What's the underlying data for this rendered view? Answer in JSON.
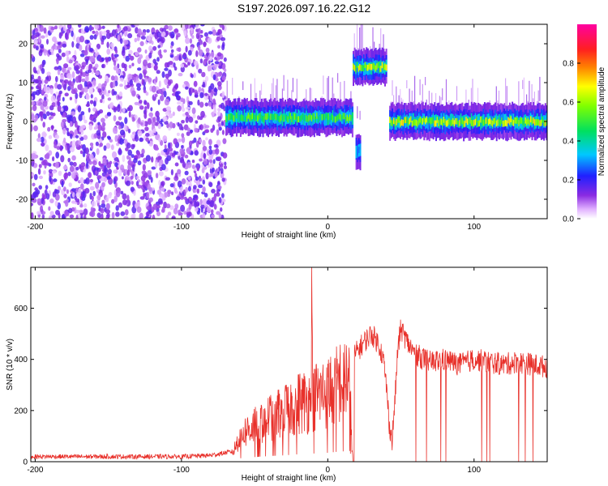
{
  "title": "S197.2026.097.16.22.G12",
  "chart_data": [
    {
      "type": "heatmap",
      "xlabel": "Height of straight line (km)",
      "ylabel": "Frequency (Hz)",
      "xlim": [
        -203,
        150
      ],
      "ylim": [
        -25,
        25
      ],
      "xticks": [
        -200,
        -100,
        0,
        100
      ],
      "yticks": [
        -20,
        -10,
        0,
        10,
        20
      ],
      "colorbar": {
        "label": "Normalized spectral amplitude",
        "range": [
          0,
          1
        ],
        "ticks": [
          0.0,
          0.2,
          0.4,
          0.6,
          0.8
        ],
        "colormap": "rainbow"
      },
      "features": [
        {
          "name": "broadband noise",
          "x_range": [
            -203,
            -70
          ],
          "amplitude": 0.15
        },
        {
          "name": "ridge",
          "x_range": [
            -70,
            17
          ],
          "freq_hz": 1,
          "amplitude": 0.5
        },
        {
          "name": "high-frequency tone",
          "x_range": [
            17,
            40
          ],
          "freq_hz": 14,
          "amplitude": 0.6
        },
        {
          "name": "blob",
          "x_range": [
            19,
            22
          ],
          "freq_hz": -7.5,
          "amplitude": 0.3
        },
        {
          "name": "ridge",
          "x_range": [
            42,
            150
          ],
          "freq_hz": 0,
          "amplitude": 0.6
        }
      ]
    },
    {
      "type": "line",
      "xlabel": "Height of straight line (km)",
      "ylabel": "SNR (10 * v/v)",
      "xlim": [
        -203,
        150
      ],
      "ylim": [
        0,
        760
      ],
      "xticks": [
        -200,
        -100,
        0,
        100
      ],
      "yticks": [
        0,
        200,
        400,
        600
      ],
      "color": "#e8302a",
      "series": [
        {
          "name": "SNR",
          "x": [
            -203,
            -150,
            -100,
            -80,
            -65,
            -60,
            -50,
            -40,
            -30,
            -20,
            -12,
            -11,
            -10,
            -5,
            0,
            5,
            10,
            15,
            17,
            18,
            20,
            25,
            30,
            35,
            38,
            40,
            42,
            44,
            46,
            48,
            50,
            55,
            60,
            70,
            80,
            90,
            100,
            110,
            120,
            130,
            140,
            150
          ],
          "y": [
            20,
            20,
            20,
            25,
            40,
            130,
            180,
            220,
            250,
            290,
            300,
            760,
            320,
            330,
            350,
            380,
            400,
            420,
            0,
            420,
            430,
            470,
            500,
            460,
            400,
            300,
            150,
            80,
            250,
            450,
            520,
            460,
            420,
            390,
            400,
            380,
            400,
            390,
            380,
            390,
            380,
            370
          ]
        }
      ]
    }
  ]
}
